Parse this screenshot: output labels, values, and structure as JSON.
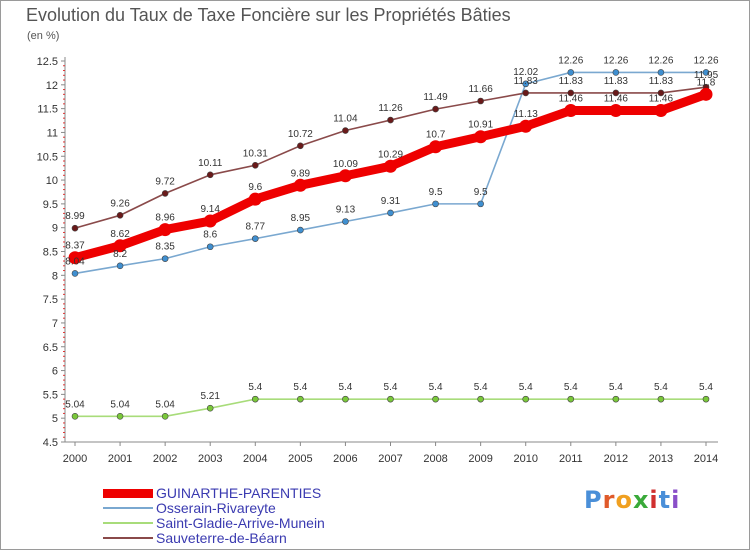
{
  "title": "Evolution du Taux de Taxe Foncière sur les Propriétés Bâties",
  "unit_label": "(en %)",
  "brand": {
    "letters": [
      "P",
      "r",
      "o",
      "x",
      "i",
      "t",
      "i"
    ],
    "colors": [
      "#4a8fd8",
      "#e05a2a",
      "#f0a020",
      "#3aaa3a",
      "#d03030",
      "#4a8fd8",
      "#8a4fc8"
    ]
  },
  "chart_data": {
    "type": "line",
    "title": "Evolution du Taux de Taxe Foncière sur les Propriétés Bâties",
    "ylabel": "(en %)",
    "xlabel": "",
    "x": [
      "2000",
      "2001",
      "2002",
      "2003",
      "2004",
      "2005",
      "2006",
      "2007",
      "2008",
      "2009",
      "2010",
      "2011",
      "2012",
      "2013",
      "2014"
    ],
    "y_ticks": [
      "4.5",
      "5",
      "5.5",
      "6",
      "6.5",
      "7",
      "7.5",
      "8",
      "8.5",
      "9",
      "9.5",
      "10",
      "10.5",
      "11",
      "11.5",
      "12",
      "12.5"
    ],
    "ylim": [
      4.5,
      12.5
    ],
    "grid": false,
    "legend_position": "bottom-left",
    "series": [
      {
        "name": "GUINARTHE-PARENTIES",
        "color": "#ee0000",
        "dot_color": "#ee0000",
        "bold": true,
        "values": [
          8.37,
          8.62,
          8.96,
          9.14,
          9.6,
          9.89,
          10.09,
          10.29,
          10.7,
          10.91,
          11.13,
          11.46,
          11.46,
          11.46,
          11.8
        ],
        "labels": [
          "8.37",
          "8.62",
          "8.96",
          "9.14",
          "9.6",
          "9.89",
          "10.09",
          "10.29",
          "10.7",
          "10.91",
          "11.13",
          "11.46",
          "11.46",
          "11.46",
          "11.8"
        ]
      },
      {
        "name": "Osserain-Rivareyte",
        "color": "#7aa8d0",
        "dot_color": "#3f8fd0",
        "bold": false,
        "values": [
          8.04,
          8.2,
          8.35,
          8.6,
          8.77,
          8.95,
          9.13,
          9.31,
          9.5,
          9.5,
          12.02,
          12.26,
          12.26,
          12.26,
          12.26
        ],
        "labels": [
          "8.04",
          "8.2",
          "8.35",
          "8.6",
          "8.77",
          "8.95",
          "9.13",
          "9.31",
          "9.5",
          "9.5",
          "12.02",
          "12.26",
          "12.26",
          "12.26",
          "12.26"
        ]
      },
      {
        "name": "Saint-Gladie-Arrive-Munein",
        "color": "#a8dc7a",
        "dot_color": "#7ac83a",
        "bold": false,
        "values": [
          5.04,
          5.04,
          5.04,
          5.21,
          5.4,
          5.4,
          5.4,
          5.4,
          5.4,
          5.4,
          5.4,
          5.4,
          5.4,
          5.4,
          5.4
        ],
        "labels": [
          "5.04",
          "5.04",
          "5.04",
          "5.21",
          "5.4",
          "5.4",
          "5.4",
          "5.4",
          "5.4",
          "5.4",
          "5.4",
          "5.4",
          "5.4",
          "5.4",
          "5.4"
        ]
      },
      {
        "name": "Sauveterre-de-Béarn",
        "color": "#8a4a4a",
        "dot_color": "#6a1a1a",
        "bold": false,
        "values": [
          8.99,
          9.26,
          9.72,
          10.11,
          10.31,
          10.72,
          11.04,
          11.26,
          11.49,
          11.66,
          11.83,
          11.83,
          11.83,
          11.83,
          11.95
        ],
        "labels": [
          "8.99",
          "9.26",
          "9.72",
          "10.11",
          "10.31",
          "10.72",
          "11.04",
          "11.26",
          "11.49",
          "11.66",
          "11.83",
          "11.83",
          "11.83",
          "11.83",
          "11.95"
        ]
      }
    ]
  }
}
